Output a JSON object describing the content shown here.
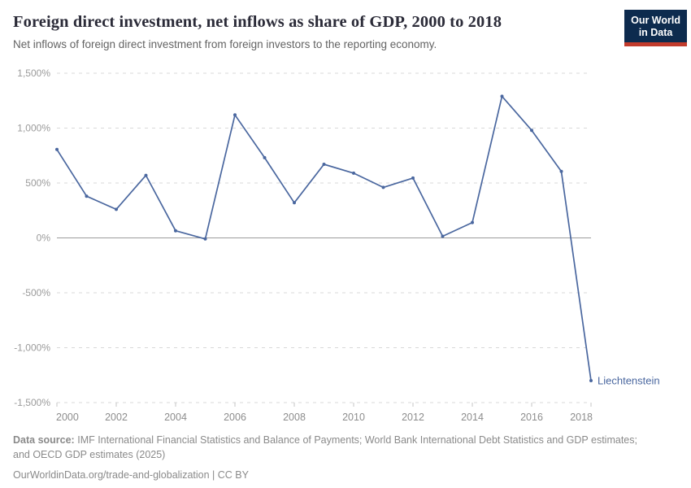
{
  "header": {
    "title": "Foreign direct investment, net inflows as share of GDP, 2000 to 2018",
    "subtitle": "Net inflows of foreign direct investment from foreign investors to the reporting economy.",
    "logo": {
      "line1": "Our World",
      "line2": "in Data",
      "bg_color": "#0d2b4e",
      "accent_color": "#c23b2c"
    }
  },
  "chart_data": {
    "type": "line",
    "title": "Foreign direct investment, net inflows as share of GDP, 2000 to 2018",
    "xlabel": "",
    "ylabel": "",
    "unit": "%",
    "grid": true,
    "ylim": [
      -1500,
      1500
    ],
    "x": [
      2000,
      2001,
      2002,
      2003,
      2004,
      2005,
      2006,
      2007,
      2008,
      2009,
      2010,
      2011,
      2012,
      2013,
      2014,
      2015,
      2016,
      2017,
      2018
    ],
    "series": [
      {
        "name": "Liechtenstein",
        "color": "#4a679f",
        "values": [
          805,
          380,
          260,
          570,
          65,
          -10,
          1120,
          730,
          320,
          670,
          590,
          460,
          545,
          15,
          140,
          1290,
          980,
          605,
          -1300
        ]
      }
    ],
    "y_ticks": [
      1500,
      1000,
      500,
      0,
      -500,
      -1000,
      -1500
    ],
    "y_tick_labels": [
      "1,500%",
      "1,000%",
      "500%",
      "0%",
      "-500%",
      "-1,000%",
      "-1,500%"
    ],
    "x_ticks": [
      2000,
      2002,
      2004,
      2006,
      2008,
      2010,
      2012,
      2014,
      2016,
      2018
    ],
    "x_tick_labels": [
      "2000",
      "2002",
      "2004",
      "2006",
      "2008",
      "2010",
      "2012",
      "2014",
      "2016",
      "2018"
    ],
    "entity_label": "Liechtenstein"
  },
  "footer": {
    "source_label": "Data source:",
    "source_line1": "IMF International Financial Statistics and Balance of Payments; World Bank International Debt Statistics and GDP estimates;",
    "source_line2": "and OECD GDP estimates (2025)",
    "license_line": "OurWorldinData.org/trade-and-globalization | CC BY"
  },
  "colors": {
    "line": "#4a679f",
    "grid": "#d9d9d9",
    "zero_line": "#9c9c9c",
    "axis_text_y": "#9b9b9b",
    "axis_text_x": "#8d8d8d",
    "title": "#2b2b38",
    "subtitle": "#636363",
    "footer": "#8a8a8a",
    "logo_bg": "#0d2b4e",
    "logo_accent": "#c23b2c"
  }
}
